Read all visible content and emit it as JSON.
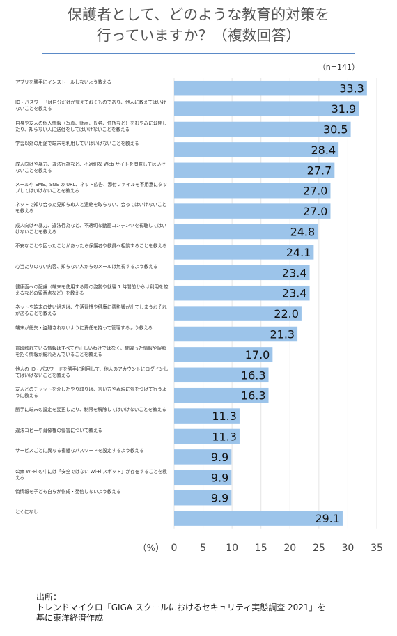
{
  "title": "保護者として、どのような教育的対策を行っていますか？（複数回答）",
  "title_lines": [
    "保護者として、どのような教育的対策を",
    "行っていますか？（複数回答）"
  ],
  "sample_note": "（n=141）",
  "source_lines": [
    "出所：",
    "トレンドマイクロ「GIGA スクールにおけるセキュリティ実態調査 2021」を",
    "基に東洋経済作成"
  ],
  "colors": {
    "bar": "#9cc4ea",
    "title_rule": "#5b8ac7",
    "grid": "#e4e4e4"
  },
  "chart_data": {
    "type": "bar",
    "orientation": "horizontal",
    "title": "保護者として、どのような教育的対策を行っていますか？（複数回答）",
    "xlabel": "（%）",
    "ylabel": "",
    "xlim": [
      0,
      35
    ],
    "x_ticks": [
      0,
      5,
      10,
      15,
      20,
      25,
      30,
      35
    ],
    "grid": true,
    "categories": [
      "アプリを勝手にインストールしないよう教える",
      "ID・パスワードは自分だけが覚えておくものであり、他人に教えてはいけないことを教える",
      "自身や友人の個人情報（写真、動画、氏名、住所など）をむやみに公開したり、知らない人に送付をしてはいけないことを教える",
      "学習以外の用途で端末を利用していはいけないことを教える",
      "成人向けや暴力、違法行為など、不適切な Web サイトを閲覧してはいけないことを教える",
      "メールや SMS、SNS の URL、ネット広告、添付ファイルを不用意にタップしてはいけないことを教える",
      "ネットで知り合った見知らぬ人と連絡を取らない、会ってはいけないことを教える",
      "成人向けや暴力、違法行為など、不適切な動画コンテンツを視聴してはいけないことを教える",
      "不安なことや困ったことがあったら保護者や教員へ相談することを教える",
      "心当たりのない内容、知らない人からのメールは無視するよう教える",
      "健康面への配慮（端末を使用する際の姿勢や就寝 1 時間前からは利用を控えるなどの留意点など）を教える",
      "ネットや端末の使い過ぎは、生活習慣や健康に悪影響が出てしまうおそれがあることを教える",
      "端末が紛失・盗難されないように責任を持って管理するよう教える",
      "普段触れている情報はすべてが正しいわけではなく、間違った情報や誤解を招く情報が紛れ込んでいることを教える",
      "他人の ID・パスワードを勝手に利用して、他人のアカウントにログインしてはいけないことを教える",
      "友人とのチャットを介したやり取りは、言い方や表現に気をつけて行うように教える",
      "勝手に端末の設定を変更したり、制限を解除してはいけないことを教える",
      "違法コピーや肖像権の侵害について教える",
      "サービスごとに異なる複雑なパスワードを設定するよう教える",
      "公衆 Wi-Fi の中には「安全ではない Wi-Fi スポット」が存在することを教える",
      "偽情報を子ども自らが作成・発信しないよう教える",
      "とくになし"
    ],
    "values": [
      33.3,
      31.9,
      30.5,
      28.4,
      27.7,
      27.0,
      27.0,
      24.8,
      24.1,
      23.4,
      23.4,
      22.0,
      21.3,
      17.0,
      16.3,
      16.3,
      11.3,
      11.3,
      9.9,
      9.9,
      9.9,
      29.1
    ],
    "value_labels": [
      "33.3",
      "31.9",
      "30.5",
      "28.4",
      "27.7",
      "27.0",
      "27.0",
      "24.8",
      "24.1",
      "23.4",
      "23.4",
      "22.0",
      "21.3",
      "17.0",
      "16.3",
      "16.3",
      "11.3",
      "11.3",
      "9.9",
      "9.9",
      "9.9",
      "29.1"
    ]
  }
}
